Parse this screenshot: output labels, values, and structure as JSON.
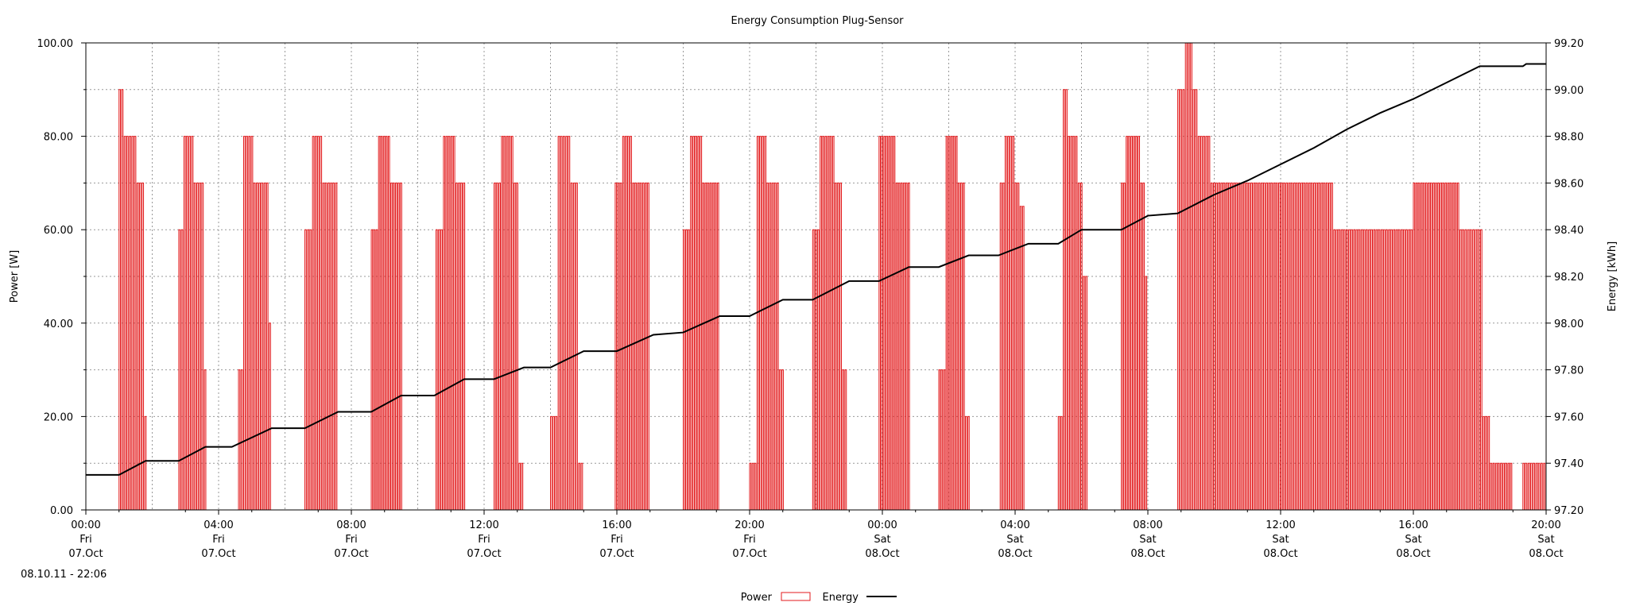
{
  "chart_data": {
    "type": "line",
    "title": "Energy Consumption Plug-Sensor",
    "timestamp": "08.10.11 - 22:06",
    "grid": true,
    "legend_position": "bottom-center",
    "x_axis": {
      "range_hours": [
        0,
        44
      ],
      "ticks": [
        {
          "hour": 0,
          "time": "00:00",
          "day": "Fri",
          "date": "07.Oct"
        },
        {
          "hour": 4,
          "time": "04:00",
          "day": "Fri",
          "date": "07.Oct"
        },
        {
          "hour": 8,
          "time": "08:00",
          "day": "Fri",
          "date": "07.Oct"
        },
        {
          "hour": 12,
          "time": "12:00",
          "day": "Fri",
          "date": "07.Oct"
        },
        {
          "hour": 16,
          "time": "16:00",
          "day": "Fri",
          "date": "07.Oct"
        },
        {
          "hour": 20,
          "time": "20:00",
          "day": "Fri",
          "date": "07.Oct"
        },
        {
          "hour": 24,
          "time": "00:00",
          "day": "Sat",
          "date": "08.Oct"
        },
        {
          "hour": 28,
          "time": "04:00",
          "day": "Sat",
          "date": "08.Oct"
        },
        {
          "hour": 32,
          "time": "08:00",
          "day": "Sat",
          "date": "08.Oct"
        },
        {
          "hour": 36,
          "time": "12:00",
          "day": "Sat",
          "date": "08.Oct"
        },
        {
          "hour": 40,
          "time": "16:00",
          "day": "Sat",
          "date": "08.Oct"
        },
        {
          "hour": 44,
          "time": "20:00",
          "day": "Sat",
          "date": "08.Oct"
        }
      ]
    },
    "y_left": {
      "label": "Power [W]",
      "range": [
        0,
        100
      ],
      "ticks": [
        "0.00",
        "20.00",
        "40.00",
        "60.00",
        "80.00",
        "100.00"
      ]
    },
    "y_right": {
      "label": "Energy [kWh]",
      "range": [
        97.2,
        99.2
      ],
      "ticks": [
        "97.20",
        "97.40",
        "97.60",
        "97.80",
        "98.00",
        "98.20",
        "98.40",
        "98.60",
        "98.80",
        "99.00",
        "99.20"
      ]
    },
    "series": [
      {
        "name": "Power",
        "axis": "left",
        "color": "#e31a1c",
        "style": "impulse-steps",
        "bursts": [
          {
            "start": 1.0,
            "end": 1.85,
            "levels": [
              90,
              80,
              80,
              80,
              70,
              70,
              20
            ]
          },
          {
            "start": 2.8,
            "end": 3.65,
            "levels": [
              60,
              80,
              80,
              70,
              70,
              30
            ]
          },
          {
            "start": 4.6,
            "end": 5.6,
            "levels": [
              30,
              80,
              80,
              70,
              70,
              70,
              40
            ]
          },
          {
            "start": 6.6,
            "end": 7.6,
            "levels": [
              60,
              80,
              80,
              70,
              70,
              70
            ]
          },
          {
            "start": 8.6,
            "end": 9.55,
            "levels": [
              60,
              80,
              80,
              70,
              70
            ]
          },
          {
            "start": 10.55,
            "end": 11.45,
            "levels": [
              60,
              80,
              80,
              70,
              70
            ]
          },
          {
            "start": 12.3,
            "end": 13.2,
            "levels": [
              70,
              80,
              80,
              70,
              10
            ]
          },
          {
            "start": 14.0,
            "end": 15.0,
            "levels": [
              20,
              80,
              80,
              70,
              10
            ]
          },
          {
            "start": 15.95,
            "end": 17.0,
            "levels": [
              70,
              80,
              80,
              70,
              70,
              70
            ]
          },
          {
            "start": 18.0,
            "end": 19.1,
            "levels": [
              60,
              80,
              80,
              70,
              70,
              70
            ]
          },
          {
            "start": 20.0,
            "end": 21.05,
            "levels": [
              10,
              80,
              80,
              70,
              70,
              30
            ]
          },
          {
            "start": 21.9,
            "end": 22.95,
            "levels": [
              60,
              80,
              80,
              70,
              30
            ]
          },
          {
            "start": 23.9,
            "end": 24.85,
            "levels": [
              80,
              80,
              70,
              70
            ]
          },
          {
            "start": 25.7,
            "end": 26.65,
            "levels": [
              30,
              80,
              80,
              70,
              20
            ]
          },
          {
            "start": 27.55,
            "end": 28.3,
            "levels": [
              70,
              80,
              80,
              70,
              65
            ]
          },
          {
            "start": 29.3,
            "end": 30.2,
            "levels": [
              20,
              90,
              80,
              80,
              70,
              50
            ]
          },
          {
            "start": 31.2,
            "end": 32.0,
            "levels": [
              70,
              80,
              80,
              80,
              70,
              50
            ]
          },
          {
            "start": 32.9,
            "end": 33.9,
            "levels": [
              90,
              100,
              90,
              80,
              80
            ]
          },
          {
            "start": 33.9,
            "end": 37.6,
            "levels": [
              70
            ]
          },
          {
            "start": 37.6,
            "end": 40.0,
            "levels": [
              60
            ]
          },
          {
            "start": 40.0,
            "end": 41.4,
            "levels": [
              70
            ]
          },
          {
            "start": 41.4,
            "end": 42.1,
            "levels": [
              60
            ]
          },
          {
            "start": 42.1,
            "end": 43.0,
            "levels": [
              20,
              10,
              10,
              10
            ]
          },
          {
            "start": 43.3,
            "end": 44.0,
            "levels": [
              10,
              10,
              10
            ]
          }
        ]
      },
      {
        "name": "Energy",
        "axis": "right",
        "color": "#000000",
        "points": [
          [
            0,
            97.35
          ],
          [
            1.0,
            97.35
          ],
          [
            1.8,
            97.41
          ],
          [
            2.8,
            97.41
          ],
          [
            3.6,
            97.47
          ],
          [
            4.4,
            97.47
          ],
          [
            5.6,
            97.55
          ],
          [
            6.6,
            97.55
          ],
          [
            7.6,
            97.62
          ],
          [
            8.6,
            97.62
          ],
          [
            9.5,
            97.69
          ],
          [
            10.5,
            97.69
          ],
          [
            11.4,
            97.76
          ],
          [
            12.3,
            97.76
          ],
          [
            13.2,
            97.81
          ],
          [
            14.0,
            97.81
          ],
          [
            15.0,
            97.88
          ],
          [
            16.0,
            97.88
          ],
          [
            17.1,
            97.95
          ],
          [
            18.0,
            97.96
          ],
          [
            19.1,
            98.03
          ],
          [
            20.0,
            98.03
          ],
          [
            21.0,
            98.1
          ],
          [
            21.9,
            98.1
          ],
          [
            23.0,
            98.18
          ],
          [
            23.9,
            98.18
          ],
          [
            24.8,
            98.24
          ],
          [
            25.7,
            98.24
          ],
          [
            26.6,
            98.29
          ],
          [
            27.5,
            98.29
          ],
          [
            28.4,
            98.34
          ],
          [
            29.3,
            98.34
          ],
          [
            30.0,
            98.4
          ],
          [
            31.2,
            98.4
          ],
          [
            32.0,
            98.46
          ],
          [
            32.9,
            98.47
          ],
          [
            34.0,
            98.55
          ],
          [
            35.0,
            98.61
          ],
          [
            36.0,
            98.68
          ],
          [
            37.0,
            98.75
          ],
          [
            38.0,
            98.83
          ],
          [
            39.0,
            98.9
          ],
          [
            40.0,
            98.96
          ],
          [
            41.0,
            99.03
          ],
          [
            42.0,
            99.1
          ],
          [
            43.3,
            99.1
          ],
          [
            43.4,
            99.11
          ],
          [
            44.0,
            99.11
          ]
        ]
      }
    ]
  }
}
